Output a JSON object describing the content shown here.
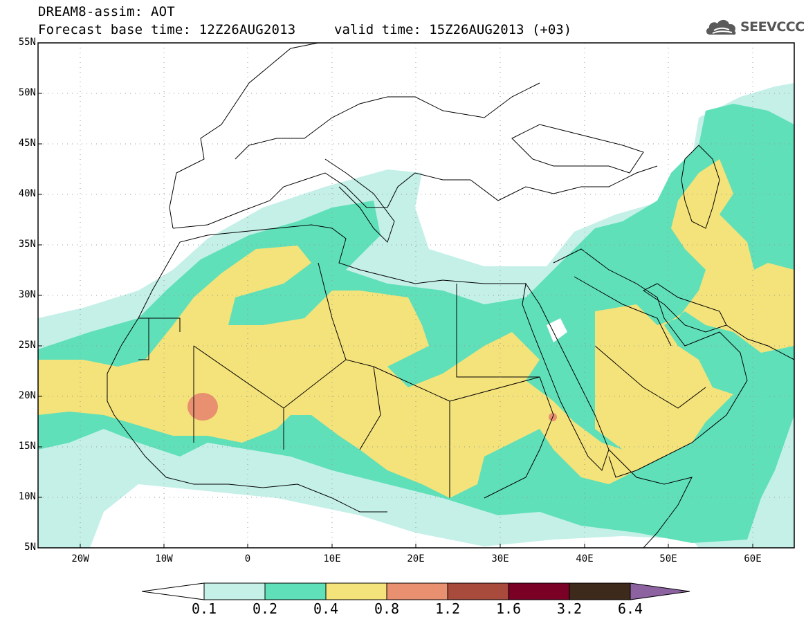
{
  "header": {
    "title_line1": "DREAM8-assim: AOT",
    "title_line2": "Forecast base time: 12Z26AUG2013",
    "valid_time": "valid time: 15Z26AUG2013 (+03)",
    "logo_text": "SEEVCCC",
    "logo_icon": "cloud-icon"
  },
  "map": {
    "lat_labels": [
      "55N",
      "50N",
      "45N",
      "40N",
      "35N",
      "30N",
      "25N",
      "20N",
      "15N",
      "10N",
      "5N"
    ],
    "lon_labels": [
      "20W",
      "10W",
      "0",
      "10E",
      "20E",
      "30E",
      "40E",
      "50E",
      "60E"
    ],
    "lat_range": [
      5,
      55
    ],
    "lon_range": [
      -25,
      65
    ],
    "grid": "dotted"
  },
  "legend": {
    "levels": [
      "0.1",
      "0.2",
      "0.4",
      "0.8",
      "1.2",
      "1.6",
      "3.2",
      "6.4"
    ],
    "colors": [
      "#ffffff",
      "#c4f0e8",
      "#5fe0b9",
      "#f4e27a",
      "#e89070",
      "#a84a3c",
      "#7a0026",
      "#3d2a1a",
      "#8c62a0"
    ]
  }
}
